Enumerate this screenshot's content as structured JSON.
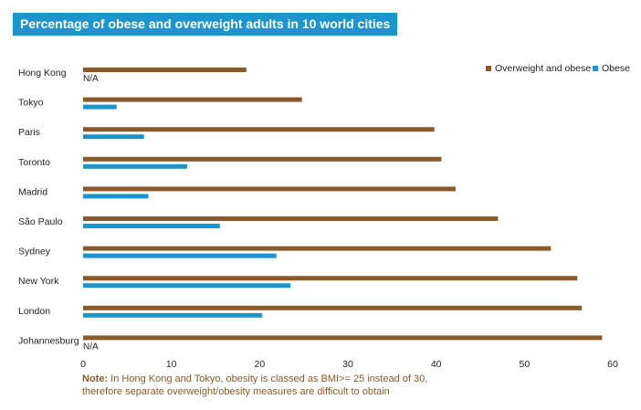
{
  "chart_data": {
    "type": "bar",
    "orientation": "horizontal",
    "title": "Percentage of obese and overweight adults in 10 world cities",
    "categories": [
      "Hong Kong",
      "Tokyo",
      "Paris",
      "Toronto",
      "Madrid",
      "São Paulo",
      "Sydney",
      "New York",
      "London",
      "Johannesburg"
    ],
    "series": [
      {
        "name": "Overweight and obese",
        "color": "#8b5a2b",
        "values": [
          18.5,
          24.8,
          39.8,
          40.6,
          42.2,
          47.0,
          53.0,
          56.0,
          56.5,
          58.8
        ]
      },
      {
        "name": "Obese",
        "color": "#1b95cc",
        "values": [
          null,
          3.8,
          6.9,
          11.8,
          7.4,
          15.5,
          21.9,
          23.5,
          20.3,
          null
        ]
      }
    ],
    "missing_label": "N/A",
    "xlim": [
      0,
      60
    ],
    "xticks": [
      0,
      10,
      20,
      30,
      40,
      50,
      60
    ],
    "grid": false,
    "legend_position": "top-right"
  },
  "note": {
    "prefix": "Note:",
    "text": "In Hong Kong and Tokyo, obesity is classed as BMI>= 25 instead of 30, therefore separate overweight/obesity measures are difficult to obtain"
  }
}
